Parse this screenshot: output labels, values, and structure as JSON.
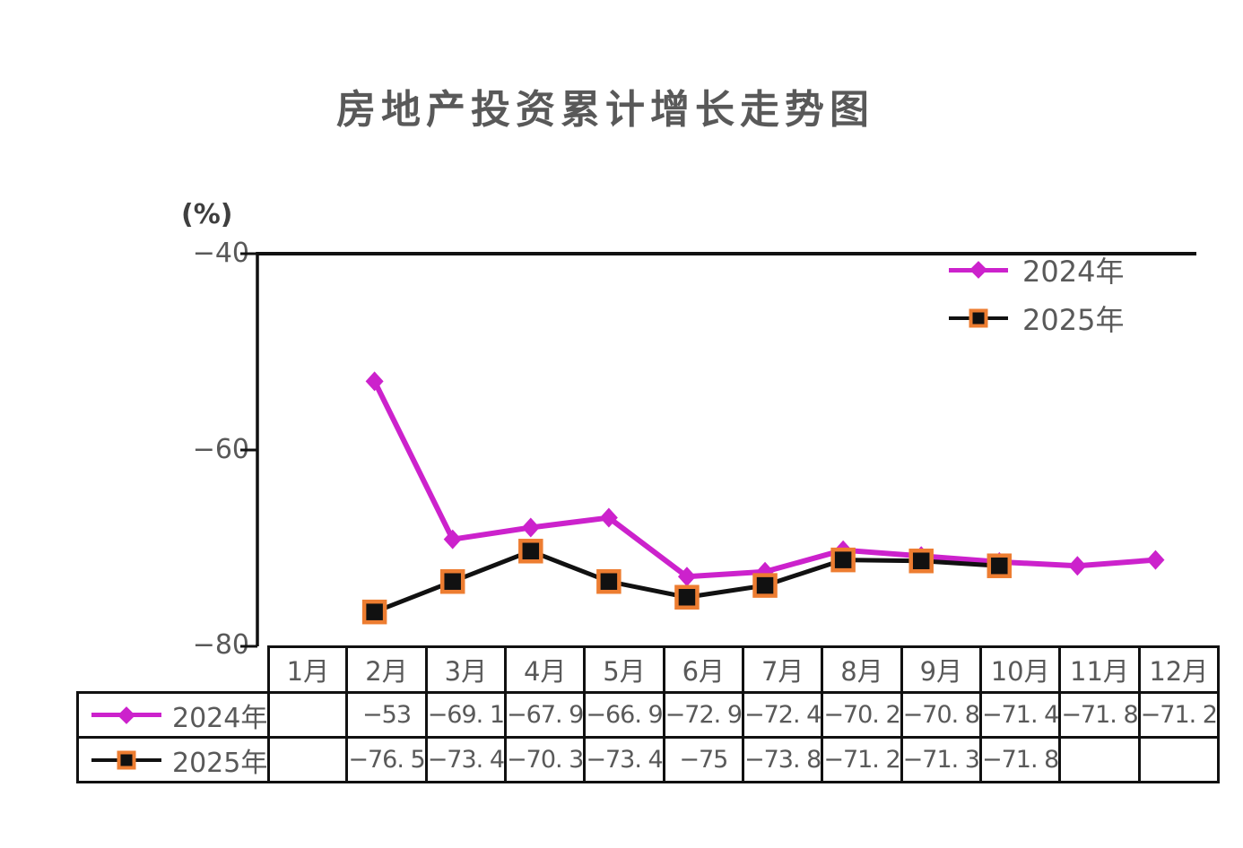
{
  "title": "房地产投资累计增长走势图",
  "y_axis": {
    "unit_label": "(%)",
    "ticks": [
      "−40",
      "−60",
      "−80"
    ]
  },
  "legend": [
    {
      "label": "2024年",
      "color": "#CC22CC",
      "marker": "diamond"
    },
    {
      "label": "2025年",
      "color": "#111111",
      "marker": "square",
      "marker_border": "#ED7D31"
    }
  ],
  "chart_data": {
    "type": "line",
    "title": "房地产投资累计增长走势图",
    "ylabel": "(%)",
    "ylim": [
      -80,
      -40
    ],
    "yticks": [
      -40,
      -60,
      -80
    ],
    "grid": false,
    "legend_position": "top-right",
    "categories": [
      "1月",
      "2月",
      "3月",
      "4月",
      "5月",
      "6月",
      "7月",
      "8月",
      "9月",
      "10月",
      "11月",
      "12月"
    ],
    "series": [
      {
        "name": "2024年",
        "color": "#CC22CC",
        "marker": "diamond",
        "values": [
          null,
          -53,
          -69.1,
          -67.9,
          -66.9,
          -72.9,
          -72.4,
          -70.2,
          -70.8,
          -71.4,
          -71.8,
          -71.2
        ]
      },
      {
        "name": "2025年",
        "color": "#111111",
        "marker": "square",
        "marker_fill": "#111111",
        "marker_border": "#ED7D31",
        "values": [
          null,
          -76.5,
          -73.4,
          -70.3,
          -73.4,
          -75,
          -73.8,
          -71.2,
          -71.3,
          -71.8,
          null,
          null
        ]
      }
    ]
  },
  "table": {
    "header": [
      "1月",
      "2月",
      "3月",
      "4月",
      "5月",
      "6月",
      "7月",
      "8月",
      "9月",
      "10月",
      "11月",
      "12月"
    ],
    "rows": [
      {
        "label": "2024年",
        "cells": [
          "",
          "−53",
          "−69. 1",
          "−67. 9",
          "−66. 9",
          "−72. 9",
          "−72. 4",
          "−70. 2",
          "−70. 8",
          "−71. 4",
          "−71. 8",
          "−71. 2"
        ]
      },
      {
        "label": "2025年",
        "cells": [
          "",
          "−76. 5",
          "−73. 4",
          "−70. 3",
          "−73. 4",
          "−75",
          "−73. 8",
          "−71. 2",
          "−71. 3",
          "−71. 8",
          "",
          ""
        ]
      }
    ]
  },
  "colors": {
    "series_2024": "#CC22CC",
    "series_2025": "#111111",
    "marker_border_2025": "#ED7D31",
    "axis": "#111111",
    "text": "#595959",
    "background": "#FFFFFF"
  }
}
